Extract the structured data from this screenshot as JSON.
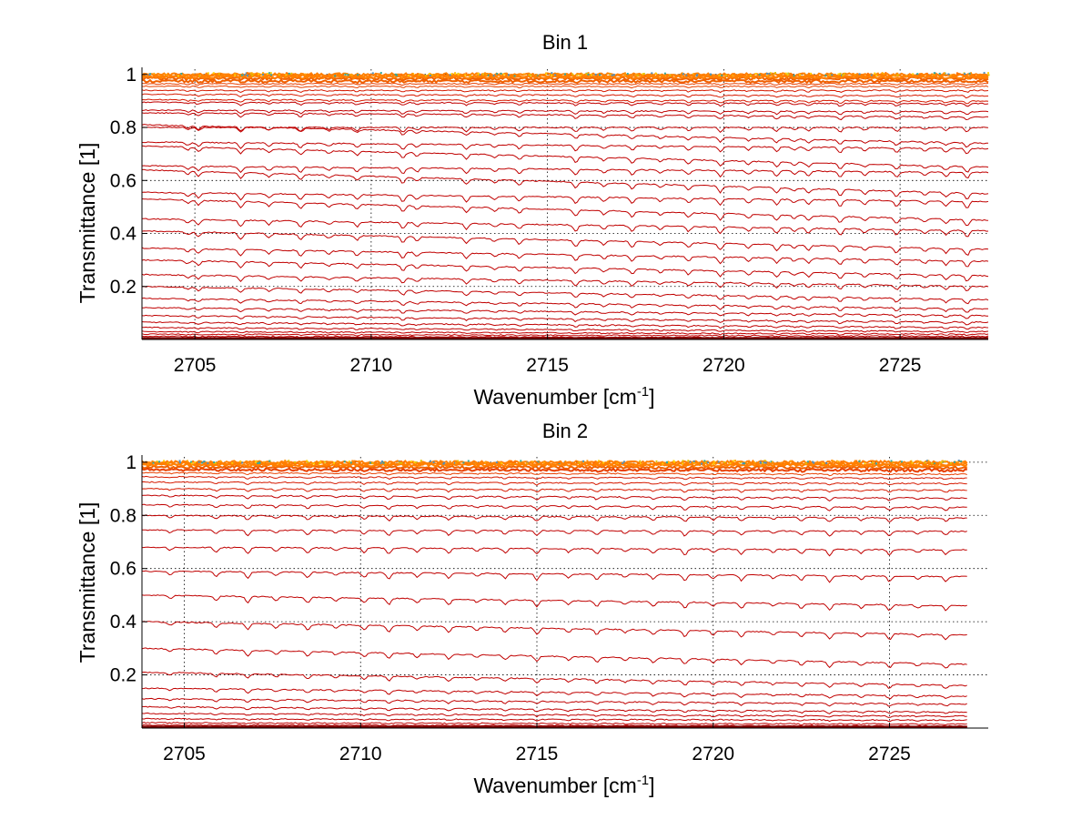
{
  "chart_data": [
    {
      "type": "line",
      "title": "Bin 1",
      "xlabel": "Wavenumber [cm",
      "xlabel_sup": "-1",
      "xlabel_tail": "]",
      "ylabel": "Transmittance [1]",
      "xlim": [
        2703.5,
        2727.5
      ],
      "ylim": [
        0,
        1.02
      ],
      "xticks": [
        2705,
        2710,
        2715,
        2720,
        2725
      ],
      "xtick_labels": [
        "2705",
        "2710",
        "2715",
        "2720",
        "2725"
      ],
      "yticks": [
        0.2,
        0.4,
        0.6,
        0.8,
        1
      ],
      "ytick_labels": [
        "0.2",
        "0.4",
        "0.6",
        "0.8",
        "1"
      ],
      "grid": true,
      "x_range": [
        2703.5,
        2727.5
      ],
      "series_levels": [
        0.005,
        0.012,
        0.02,
        0.03,
        0.045,
        0.065,
        0.09,
        0.12,
        0.155,
        0.2,
        0.245,
        0.3,
        0.345,
        0.41,
        0.455,
        0.53,
        0.555,
        0.64,
        0.655,
        0.73,
        0.745,
        0.81,
        0.8,
        0.855,
        0.865,
        0.895,
        0.905,
        0.925,
        0.94,
        0.955,
        0.965,
        0.975,
        0.985,
        0.99,
        0.995,
        1.0
      ],
      "series_end_levels": [
        0.003,
        0.006,
        0.012,
        0.02,
        0.03,
        0.045,
        0.065,
        0.09,
        0.115,
        0.15,
        0.2,
        0.24,
        0.295,
        0.34,
        0.41,
        0.45,
        0.52,
        0.55,
        0.63,
        0.65,
        0.72,
        0.74,
        0.8,
        0.84,
        0.86,
        0.89,
        0.9,
        0.92,
        0.94,
        0.955,
        0.965,
        0.975,
        0.985,
        0.99,
        0.995,
        1.0
      ],
      "absorption_lines": [
        2704.8,
        2705.1,
        2706.3,
        2707.1,
        2708.0,
        2708.8,
        2709.6,
        2710.9,
        2711.3,
        2712.7,
        2713.5,
        2714.2,
        2715.8,
        2716.6,
        2717.4,
        2718.2,
        2719.0,
        2719.9,
        2720.7,
        2721.5,
        2722.0,
        2722.4,
        2723.3,
        2724.0,
        2724.9,
        2725.7,
        2726.3,
        2726.9
      ]
    },
    {
      "type": "line",
      "title": "Bin 2",
      "xlabel": "Wavenumber [cm",
      "xlabel_sup": "-1",
      "xlabel_tail": "]",
      "ylabel": "Transmittance [1]",
      "xlim": [
        2703.8,
        2727.8
      ],
      "ylim": [
        0,
        1.02
      ],
      "xticks": [
        2705,
        2710,
        2715,
        2720,
        2725
      ],
      "xtick_labels": [
        "2705",
        "2710",
        "2715",
        "2720",
        "2725"
      ],
      "yticks": [
        0.2,
        0.4,
        0.6,
        0.8,
        1
      ],
      "ytick_labels": [
        "0.2",
        "0.4",
        "0.6",
        "0.8",
        "1"
      ],
      "grid": true,
      "x_range": [
        2703.8,
        2727.2
      ],
      "series_levels": [
        0.005,
        0.012,
        0.02,
        0.035,
        0.055,
        0.08,
        0.11,
        0.15,
        0.21,
        0.3,
        0.4,
        0.5,
        0.59,
        0.68,
        0.745,
        0.8,
        0.84,
        0.875,
        0.9,
        0.925,
        0.945,
        0.96,
        0.972,
        0.982,
        0.99,
        0.995,
        1.0
      ],
      "series_end_levels": [
        0.003,
        0.008,
        0.015,
        0.03,
        0.045,
        0.06,
        0.09,
        0.12,
        0.16,
        0.24,
        0.35,
        0.46,
        0.57,
        0.67,
        0.74,
        0.79,
        0.83,
        0.865,
        0.895,
        0.92,
        0.94,
        0.955,
        0.97,
        0.98,
        0.988,
        0.993,
        1.0
      ],
      "absorption_lines": [
        2704.6,
        2705.9,
        2706.8,
        2707.6,
        2708.5,
        2709.3,
        2710.1,
        2710.8,
        2711.6,
        2712.5,
        2713.3,
        2714.1,
        2715.0,
        2715.9,
        2716.7,
        2717.5,
        2718.3,
        2719.2,
        2720.0,
        2720.8,
        2721.7,
        2722.5,
        2723.3,
        2724.2,
        2725.0,
        2725.8,
        2726.6
      ]
    }
  ]
}
